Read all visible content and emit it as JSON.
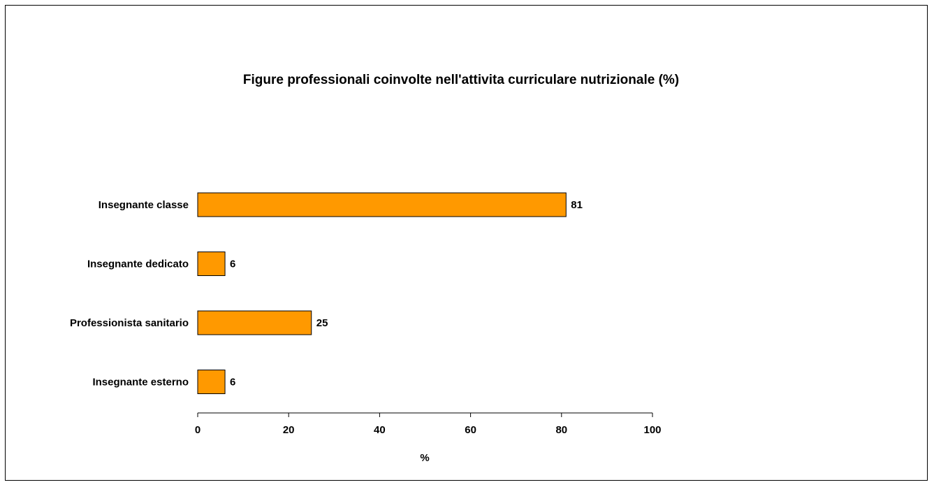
{
  "chart_data": {
    "type": "bar",
    "orientation": "horizontal",
    "title": "Figure professionali coinvolte nell'attivita curriculare nutrizionale (%)",
    "categories": [
      "Insegnante classe",
      "Insegnante dedicato",
      "Professionista sanitario",
      "Insegnante esterno"
    ],
    "values": [
      81,
      6,
      25,
      6
    ],
    "xlabel": "%",
    "ylabel": "",
    "xlim": [
      0,
      100
    ],
    "xticks": [
      0,
      20,
      40,
      60,
      80,
      100
    ],
    "grid": false,
    "legend": "none",
    "bar_color": "#FF9900",
    "bar_border_color": "#000000",
    "data_labels": true
  }
}
